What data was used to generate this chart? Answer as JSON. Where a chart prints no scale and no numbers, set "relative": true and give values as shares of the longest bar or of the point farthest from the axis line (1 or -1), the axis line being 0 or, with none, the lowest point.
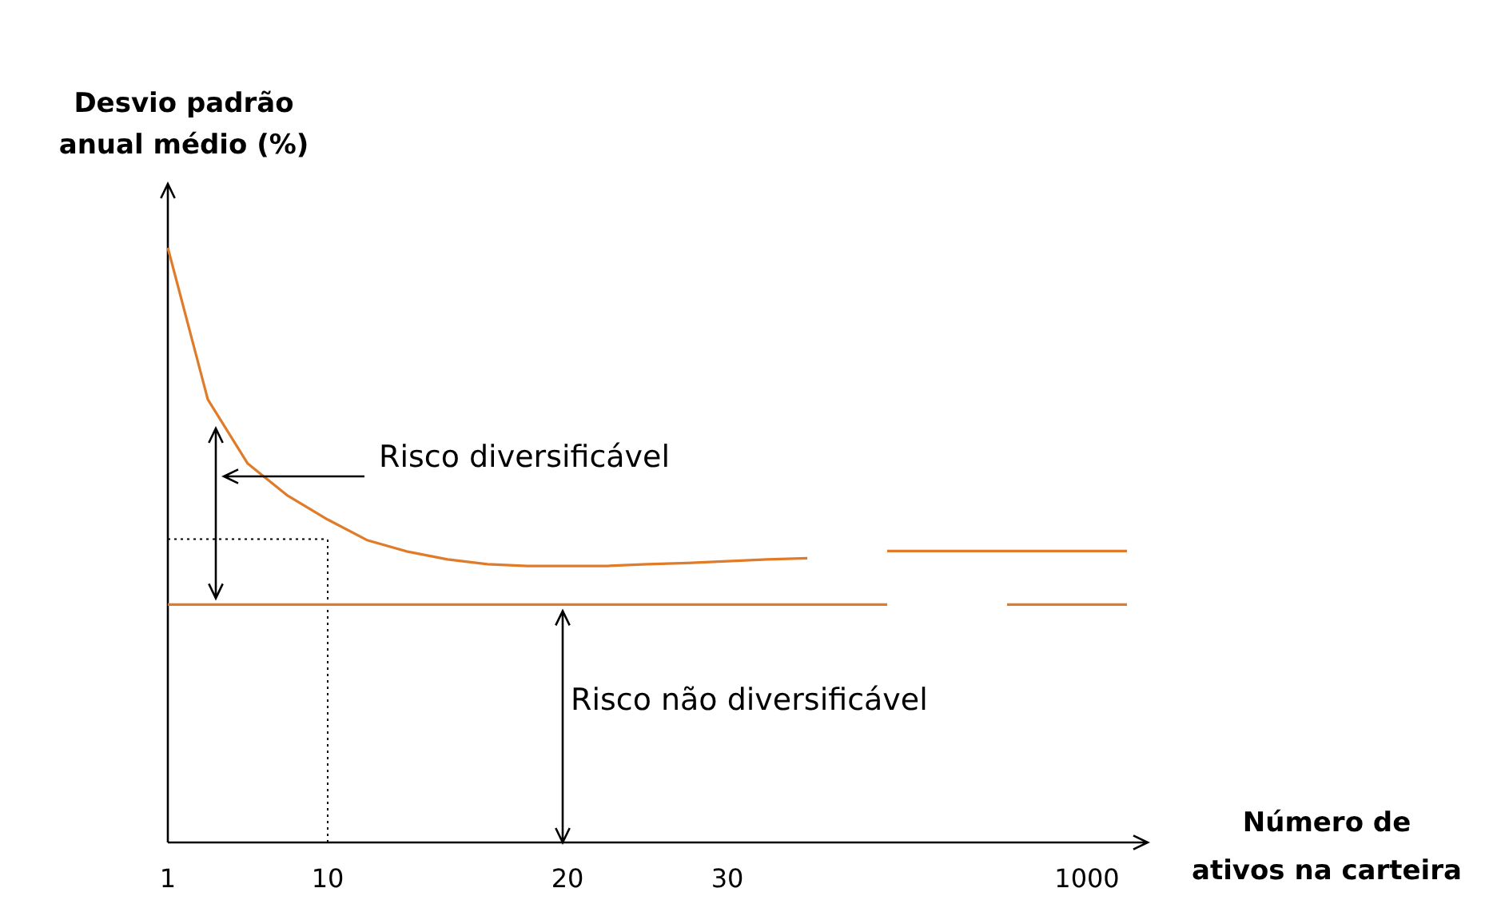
{
  "chart_data": {
    "type": "line",
    "relative": true,
    "ylabel": "Desvio padrão anual médio (%)",
    "xlabel": "Número de ativos na carteira",
    "categories": [
      "1",
      null,
      null,
      null,
      "10",
      null,
      null,
      null,
      null,
      null,
      "20",
      null,
      null,
      null,
      "30",
      null,
      null,
      null,
      null,
      null,
      null,
      null,
      null,
      "1000",
      null
    ],
    "series": [
      {
        "color": "#e07b2a",
        "values": [
          1.0,
          0.745,
          0.637,
          0.583,
          0.543,
          0.508,
          0.489,
          0.476,
          0.468,
          0.465,
          0.465,
          0.465,
          0.468,
          0.47,
          0.473,
          0.476,
          0.478,
          null,
          0.49,
          0.49,
          0.49,
          0.49,
          0.49,
          0.49,
          0.49
        ]
      },
      {
        "color": "#e07b2a",
        "values": [
          0.4,
          0.4,
          0.4,
          0.4,
          0.4,
          0.4,
          0.4,
          0.4,
          0.4,
          0.4,
          0.4,
          0.4,
          0.4,
          0.4,
          0.4,
          0.4,
          0.4,
          0.4,
          0.4,
          null,
          null,
          0.4,
          0.4,
          0.4,
          0.4
        ]
      }
    ],
    "annotations": [
      "Risco diversificável",
      "Risco não diversificável"
    ],
    "ref_lines": [
      {
        "axis": "y",
        "value": 0.51,
        "line_style": "dotted",
        "color": "#000000"
      },
      {
        "axis": "x",
        "value": "10",
        "line_style": "dotted",
        "color": "#000000"
      }
    ]
  }
}
